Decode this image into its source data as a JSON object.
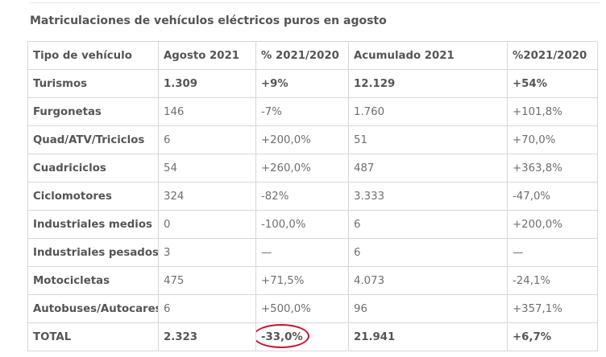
{
  "caption": "Matriculaciones de vehículos eléctricos puros en agosto",
  "table": {
    "headers": [
      "Tipo de vehículo",
      "Agosto 2021",
      "% 2021/2020",
      "Acumulado 2021",
      "%2021/2020"
    ],
    "rows": [
      {
        "tipo": "Turismos",
        "agosto": "1.309",
        "pct": "+9%",
        "acumulado": "12.129",
        "pct_acum": "+54%"
      },
      {
        "tipo": "Furgonetas",
        "agosto": "146",
        "pct": "-7%",
        "acumulado": "1.760",
        "pct_acum": "+101,8%"
      },
      {
        "tipo": "Quad/ATV/Triciclos",
        "agosto": "6",
        "pct": "+200,0%",
        "acumulado": "51",
        "pct_acum": "+70,0%"
      },
      {
        "tipo": "Cuadriciclos",
        "agosto": "54",
        "pct": "+260,0%",
        "acumulado": "487",
        "pct_acum": "+363,8%"
      },
      {
        "tipo": "Ciclomotores",
        "agosto": "324",
        "pct": "-82%",
        "acumulado": "3.333",
        "pct_acum": "-47,0%"
      },
      {
        "tipo": "Industriales medios",
        "agosto": "0",
        "pct": "-100,0%",
        "acumulado": "6",
        "pct_acum": "+200,0%"
      },
      {
        "tipo": "Industriales pesados",
        "agosto": "3",
        "pct": "—",
        "acumulado": "6",
        "pct_acum": "—"
      },
      {
        "tipo": "Motocicletas",
        "agosto": "475",
        "pct": "+71,5%",
        "acumulado": "4.073",
        "pct_acum": "-24,1%"
      },
      {
        "tipo": "Autobuses/Autocares",
        "agosto": "6",
        "pct": "+500,0%",
        "acumulado": "96",
        "pct_acum": "+357,1%"
      },
      {
        "tipo": "TOTAL",
        "agosto": "2.323",
        "pct": "-33,0%",
        "acumulado": "21.941",
        "pct_acum": "+6,7%"
      }
    ]
  },
  "highlight": {
    "target": "TOTAL % 2021/2020",
    "color": "#c8102e"
  }
}
